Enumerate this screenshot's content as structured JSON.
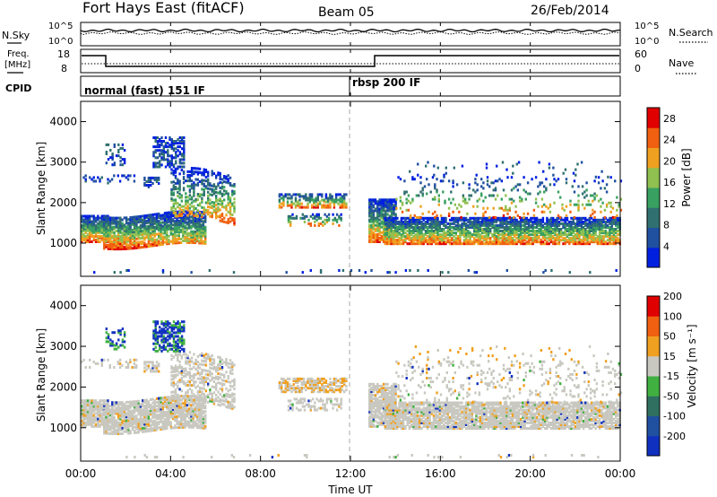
{
  "header": {
    "station": "Fort Hays East (fitACF)",
    "beam": "Beam 05",
    "date": "26/Feb/2014"
  },
  "noise_panel": {
    "left_label": "N.Sky",
    "right_label": "N.Search",
    "left_ticks": [
      "10^5",
      "10^0"
    ],
    "right_ticks": [
      "10^5",
      "10^0"
    ]
  },
  "freq_panel": {
    "left_label_1": "Freq.",
    "left_label_2": "[MHz]",
    "left_ticks": [
      "18",
      "8"
    ],
    "right_label": "Nave",
    "right_ticks": [
      "60",
      "0"
    ]
  },
  "cpid_panel": {
    "label": "CPID",
    "mode_1": "normal (fast) 151 IF",
    "mode_2": "rbsp 200 IF"
  },
  "chart_data": [
    {
      "type": "heatmap",
      "name": "power",
      "ylabel": "Slant Range [km]",
      "yticks": [
        "1000",
        "2000",
        "3000",
        "4000"
      ],
      "ylim": [
        180,
        4500
      ],
      "xlim": [
        0,
        24
      ],
      "colorbar_label": "Power [dB]",
      "colorbar_ticks": [
        "4",
        "8",
        "12",
        "16",
        "20",
        "24",
        "28"
      ],
      "colorbar_range": [
        0,
        30
      ],
      "colors": [
        "#0020e0",
        "#2050a0",
        "#307070",
        "#38a060",
        "#90c050",
        "#f0a020",
        "#f06010",
        "#e00000"
      ]
    },
    {
      "type": "heatmap",
      "name": "velocity",
      "ylabel": "Slant Range [km]",
      "yticks": [
        "1000",
        "2000",
        "3000",
        "4000"
      ],
      "ylim": [
        180,
        4500
      ],
      "xlim": [
        0,
        24
      ],
      "colorbar_label": "Velocity [m s⁻¹]",
      "colorbar_ticks": [
        "200",
        "100",
        "50",
        "15",
        "-15",
        "-50",
        "-100",
        "-200"
      ],
      "colors": [
        "#1030c0",
        "#2050a0",
        "#307060",
        "#40b040",
        "#c8c8c0",
        "#f0a020",
        "#f06010",
        "#e00000"
      ]
    }
  ],
  "x_axis": {
    "label": "Time UT",
    "ticks": [
      "00:00",
      "04:00",
      "08:00",
      "12:00",
      "16:00",
      "20:00",
      "00:00"
    ]
  }
}
